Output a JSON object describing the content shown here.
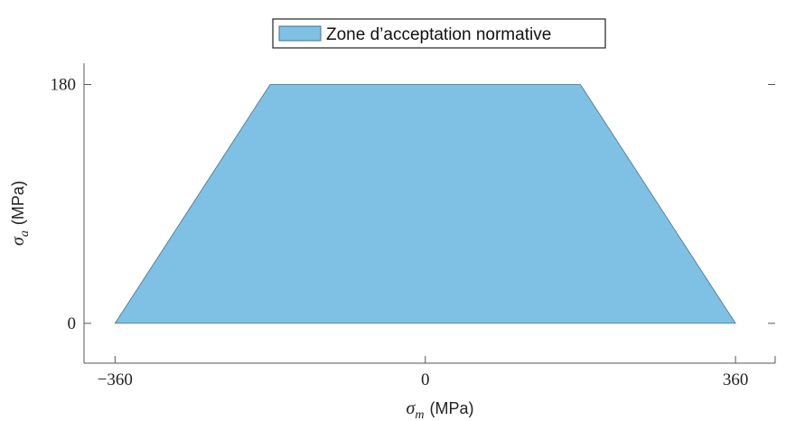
{
  "colors": {
    "fill": "#7fc1e4",
    "edge": "#4a6f8a",
    "axis": "#555555",
    "legend_border": "#222222"
  },
  "chart_data": {
    "type": "area",
    "title": "",
    "xlabel": {
      "symbol": "σ",
      "subscript": "m",
      "unit": "(MPa)"
    },
    "ylabel": {
      "symbol": "σ",
      "subscript": "a",
      "unit": "(MPa)"
    },
    "xlim": [
      -396,
      406
    ],
    "ylim": [
      -30,
      196
    ],
    "xticks": [
      -360,
      0,
      360
    ],
    "xtick_labels": [
      "−360",
      "0",
      "360"
    ],
    "yticks": [
      0,
      180
    ],
    "ytick_labels": [
      "0",
      "180"
    ],
    "grid": false,
    "legend": {
      "position": "top-center",
      "entries": [
        "Zone d’acceptation normative"
      ]
    },
    "series": [
      {
        "name": "Zone d’acceptation normative",
        "x": [
          -360,
          -180,
          180,
          360
        ],
        "y": [
          0,
          180,
          180,
          0
        ]
      }
    ]
  }
}
